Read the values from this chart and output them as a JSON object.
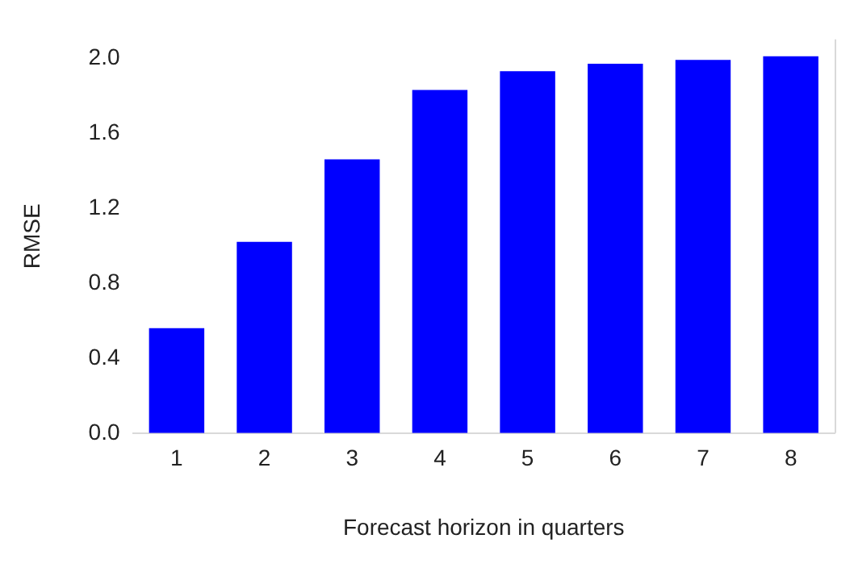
{
  "chart_data": {
    "type": "bar",
    "xlabel": "Forecast horizon in quarters",
    "ylabel": "RMSE",
    "categories": [
      "1",
      "2",
      "3",
      "4",
      "5",
      "6",
      "7",
      "8"
    ],
    "values": [
      0.56,
      1.02,
      1.46,
      1.83,
      1.93,
      1.97,
      1.99,
      2.01
    ],
    "color": "#0000ff",
    "ylim": [
      0,
      2.1
    ],
    "yticks": [
      {
        "value": 0,
        "label": "0.0"
      },
      {
        "value": 0.4,
        "label": "0.4"
      },
      {
        "value": 0.8,
        "label": "0.8"
      },
      {
        "value": 1.2,
        "label": "1.2"
      },
      {
        "value": 1.6,
        "label": "1.6"
      },
      {
        "value": 2,
        "label": "2.0"
      }
    ],
    "grid": false,
    "legend": false
  }
}
